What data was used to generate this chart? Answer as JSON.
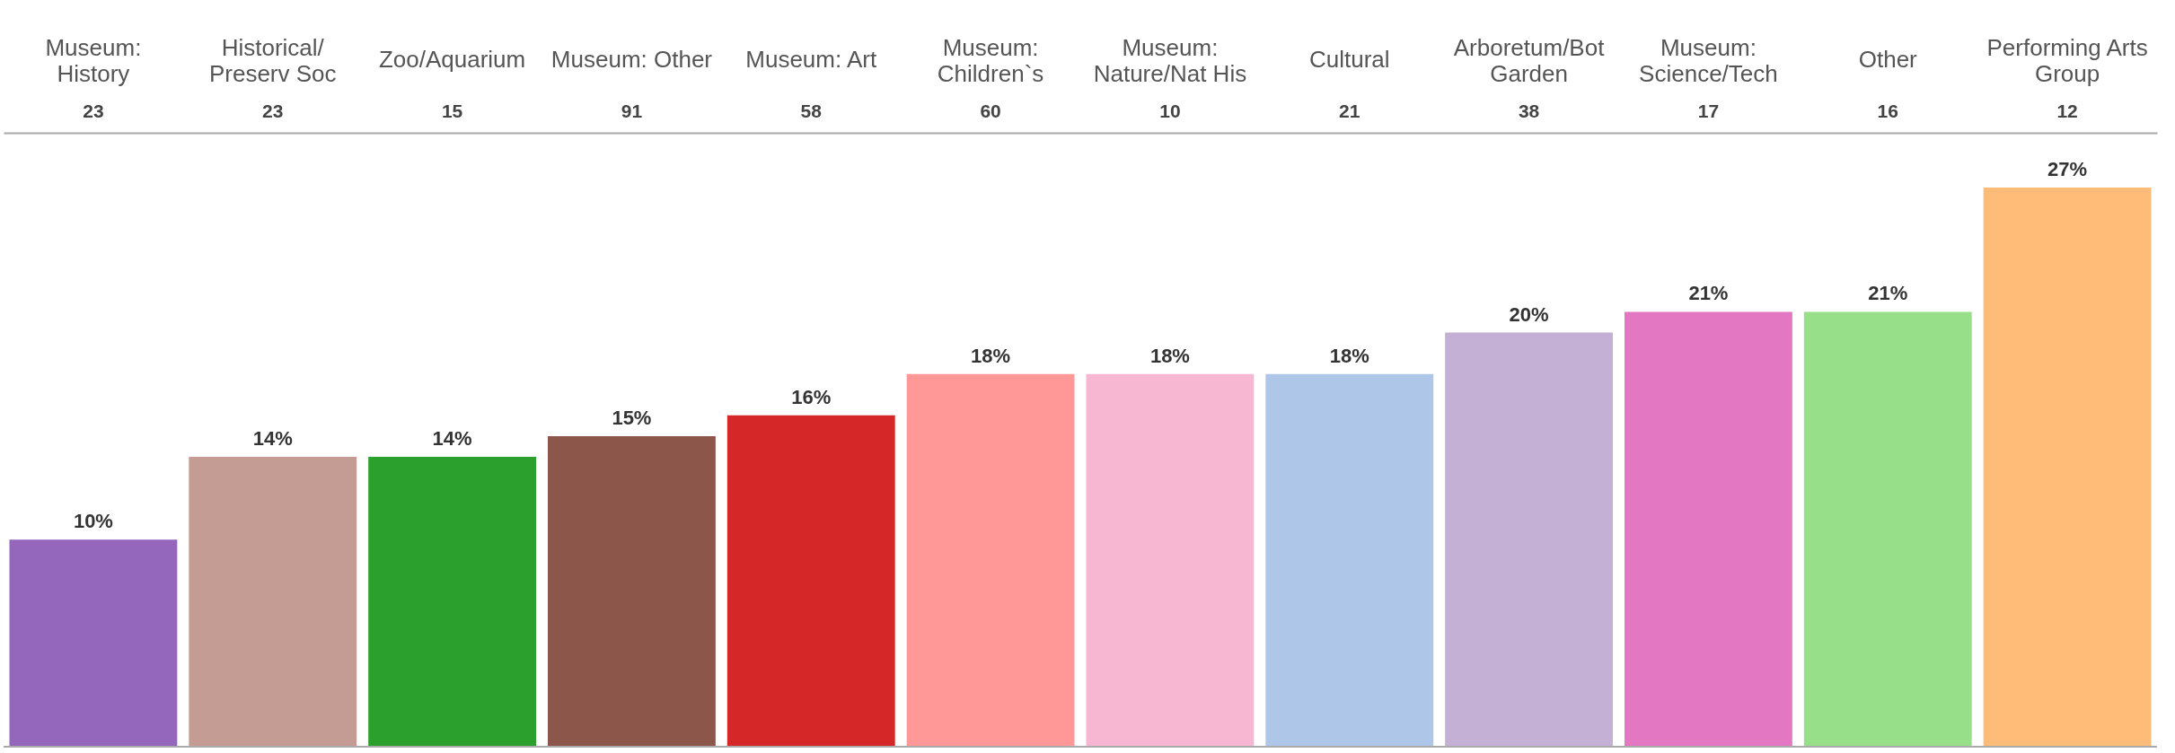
{
  "chart_data": {
    "type": "bar",
    "categories": [
      "Museum: History",
      "Historical/Preserv Soc",
      "Zoo/Aquarium",
      "Museum: Other",
      "Museum: Art",
      "Museum: Children`s",
      "Museum: Nature/Nat His",
      "Cultural",
      "Arboretum/Bot Garden",
      "Museum: Science/Tech",
      "Other",
      "Performing Arts Group"
    ],
    "values": [
      10,
      14,
      14,
      15,
      16,
      18,
      18,
      18,
      20,
      21,
      21,
      27
    ],
    "value_labels": [
      "10%",
      "14%",
      "14%",
      "15%",
      "16%",
      "18%",
      "18%",
      "18%",
      "20%",
      "21%",
      "21%",
      "27%"
    ],
    "colors": [
      "#9467bd",
      "#c49c94",
      "#2ca02c",
      "#8c564b",
      "#d62728",
      "#ff9896",
      "#f7b6d2",
      "#aec7e8",
      "#c5b0d5",
      "#e377c2",
      "#98df8a",
      "#ffbb78"
    ],
    "annotations": [
      "23",
      "23",
      "15",
      "91",
      "58",
      "60",
      "10",
      "21",
      "38",
      "17",
      "16",
      "12"
    ],
    "tick_labels": "x"
  }
}
